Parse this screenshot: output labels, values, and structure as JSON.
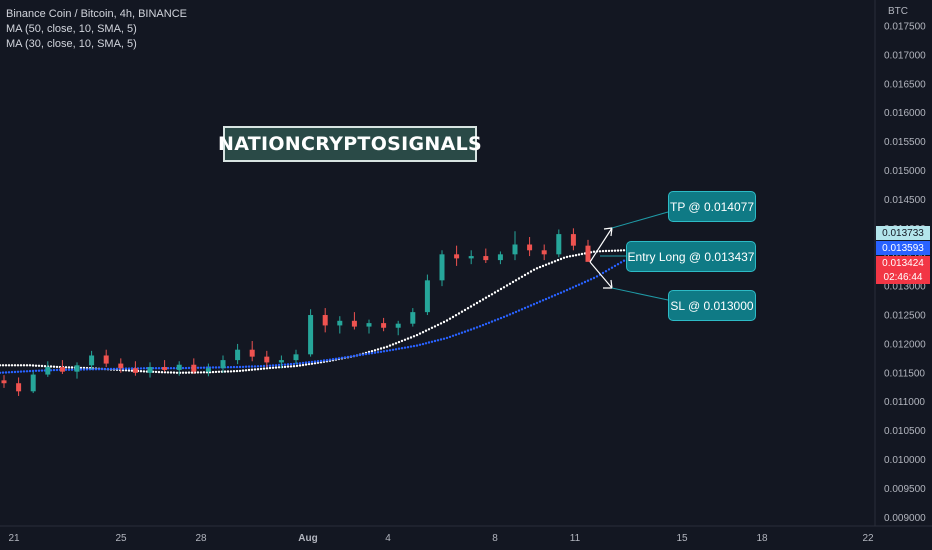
{
  "legend": {
    "main": "Binance Coin / Bitcoin, 4h, BINANCE",
    "ma1": "MA (50, close, 10, SMA, 5)",
    "ma2": "MA (30, close, 10, SMA, 5)"
  },
  "currency": "BTC",
  "watermark": "NATIONCRYPTOSIGNALS",
  "callouts": {
    "tp": "TP @ 0.014077",
    "entry": "Entry Long @ 0.013437",
    "sl": "SL @ 0.013000"
  },
  "price_tags": [
    {
      "text": "0.013733",
      "bg": "#b3e5ec",
      "fg": "#131722"
    },
    {
      "text": "0.013593",
      "bg": "#2962ff",
      "fg": "#ffffff"
    },
    {
      "text": "0.013424",
      "bg": "#f23645",
      "fg": "#ffffff"
    },
    {
      "text": "02:46:44",
      "bg": "#f23645",
      "fg": "#ffffff"
    }
  ],
  "colors": {
    "up": "#26a69a",
    "down": "#ef5350",
    "ma_white": "#ffffff",
    "ma_blue": "#2962ff"
  },
  "chart_data": {
    "type": "candlestick",
    "title": "Binance Coin / Bitcoin, 4h, BINANCE",
    "ylabel": "BTC",
    "ylim": [
      0.00885,
      0.01795
    ],
    "y_ticks": [
      "0.017500",
      "0.017000",
      "0.016500",
      "0.016000",
      "0.015500",
      "0.015000",
      "0.014500",
      "0.014000",
      "0.013500",
      "0.013000",
      "0.012500",
      "0.012000",
      "0.011500",
      "0.011000",
      "0.010500",
      "0.010000",
      "0.009500",
      "0.009000"
    ],
    "x_ticks": [
      "21",
      "25",
      "28",
      "Aug",
      "4",
      "8",
      "11",
      "15",
      "18",
      "22"
    ],
    "candles_approx": [
      [
        0.01137,
        0.01146,
        0.01124,
        0.01132
      ],
      [
        0.01132,
        0.01142,
        0.0111,
        0.01118
      ],
      [
        0.01118,
        0.01152,
        0.01115,
        0.01147
      ],
      [
        0.01147,
        0.0117,
        0.01143,
        0.0116
      ],
      [
        0.0116,
        0.01172,
        0.01148,
        0.01152
      ],
      [
        0.01152,
        0.01168,
        0.0114,
        0.01163
      ],
      [
        0.01163,
        0.01188,
        0.01155,
        0.0118
      ],
      [
        0.0118,
        0.0119,
        0.0116,
        0.01166
      ],
      [
        0.01166,
        0.01175,
        0.0115,
        0.01158
      ],
      [
        0.01158,
        0.0117,
        0.01145,
        0.0115
      ],
      [
        0.0115,
        0.01168,
        0.01142,
        0.0116
      ],
      [
        0.0116,
        0.01172,
        0.01152,
        0.01155
      ],
      [
        0.01155,
        0.0117,
        0.01145,
        0.01164
      ],
      [
        0.01164,
        0.01175,
        0.01148,
        0.01152
      ],
      [
        0.01152,
        0.01166,
        0.01144,
        0.01158
      ],
      [
        0.01158,
        0.0118,
        0.0115,
        0.01172
      ],
      [
        0.01172,
        0.012,
        0.01165,
        0.0119
      ],
      [
        0.0119,
        0.01205,
        0.0117,
        0.01178
      ],
      [
        0.01178,
        0.01188,
        0.0116,
        0.01168
      ],
      [
        0.01168,
        0.0118,
        0.01158,
        0.01172
      ],
      [
        0.01172,
        0.0119,
        0.01165,
        0.01182
      ],
      [
        0.01182,
        0.0126,
        0.01178,
        0.0125
      ],
      [
        0.0125,
        0.01262,
        0.0122,
        0.01232
      ],
      [
        0.01232,
        0.01248,
        0.01218,
        0.0124
      ],
      [
        0.0124,
        0.01255,
        0.01225,
        0.0123
      ],
      [
        0.0123,
        0.01242,
        0.01218,
        0.01236
      ],
      [
        0.01236,
        0.01245,
        0.01222,
        0.01228
      ],
      [
        0.01228,
        0.0124,
        0.01215,
        0.01235
      ],
      [
        0.01235,
        0.01262,
        0.0123,
        0.01255
      ],
      [
        0.01255,
        0.0132,
        0.0125,
        0.0131
      ],
      [
        0.0131,
        0.01362,
        0.013,
        0.01355
      ],
      [
        0.01355,
        0.0137,
        0.01335,
        0.01348
      ],
      [
        0.01348,
        0.01362,
        0.01338,
        0.01352
      ],
      [
        0.01352,
        0.01365,
        0.0134,
        0.01345
      ],
      [
        0.01345,
        0.0136,
        0.01338,
        0.01355
      ],
      [
        0.01355,
        0.01395,
        0.01345,
        0.01372
      ],
      [
        0.01372,
        0.01385,
        0.01352,
        0.01362
      ],
      [
        0.01362,
        0.01372,
        0.01345,
        0.01355
      ],
      [
        0.01355,
        0.01398,
        0.0135,
        0.0139
      ],
      [
        0.0139,
        0.014,
        0.01362,
        0.0137
      ],
      [
        0.0137,
        0.0138,
        0.0135,
        0.01342
      ]
    ],
    "series": [
      {
        "name": "MA (50, close, 10, SMA, 5)",
        "values_approx": [
          0.01163,
          0.01163,
          0.0116,
          0.01158,
          0.01155,
          0.01152,
          0.0115,
          0.01151,
          0.01153,
          0.01158,
          0.01162,
          0.0117,
          0.0118,
          0.01195,
          0.01215,
          0.0124,
          0.0127,
          0.013,
          0.0133,
          0.0135,
          0.0136,
          0.01362
        ]
      },
      {
        "name": "MA (30, close, 10, SMA, 5)",
        "values_approx": [
          0.0115,
          0.01153,
          0.01155,
          0.01156,
          0.01157,
          0.01158,
          0.01158,
          0.01159,
          0.0116,
          0.01162,
          0.01166,
          0.01172,
          0.0118,
          0.01188,
          0.01197,
          0.0121,
          0.01228,
          0.01248,
          0.0127,
          0.01292,
          0.01315,
          0.01345
        ]
      }
    ]
  }
}
